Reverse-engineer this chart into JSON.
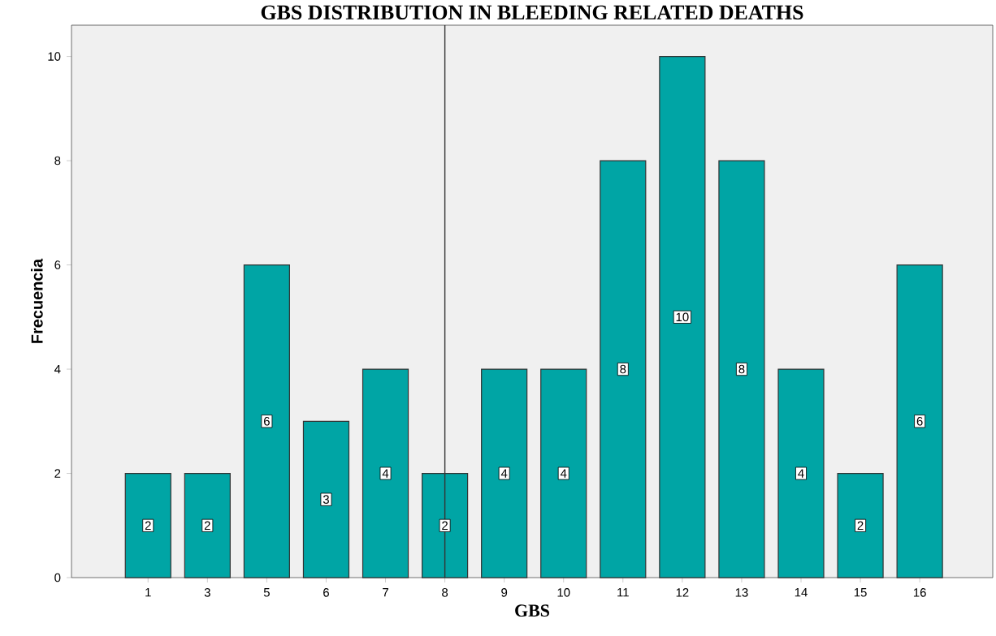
{
  "chart_data": {
    "type": "bar",
    "title": "GBS DISTRIBUTION IN BLEEDING RELATED DEATHS",
    "xlabel": "GBS",
    "ylabel": "Frecuencia",
    "categories": [
      "1",
      "3",
      "5",
      "6",
      "7",
      "8",
      "9",
      "10",
      "11",
      "12",
      "13",
      "14",
      "15",
      "16"
    ],
    "values": [
      2,
      2,
      6,
      3,
      4,
      2,
      4,
      4,
      8,
      10,
      8,
      4,
      2,
      6
    ],
    "color": "#00a5a5",
    "ylim": [
      0,
      10.6
    ],
    "yticks": [
      0,
      2,
      4,
      6,
      8,
      10
    ],
    "data_labels": true,
    "ref_lines": [
      {
        "axis": "x",
        "value": "8",
        "color": "#333333"
      }
    ]
  }
}
